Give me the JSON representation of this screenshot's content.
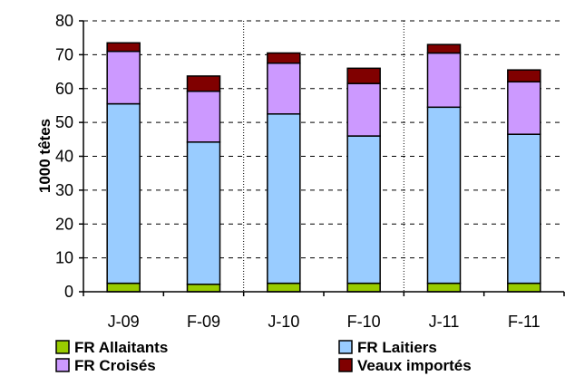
{
  "chart_data": {
    "type": "bar",
    "stacked": true,
    "categories": [
      "J-09",
      "F-09",
      "J-10",
      "F-10",
      "J-11",
      "F-11"
    ],
    "series": [
      {
        "name": "FR Allaitants",
        "color": "#99cc00",
        "values": [
          2.5,
          2.2,
          2.5,
          2.5,
          2.5,
          2.5
        ]
      },
      {
        "name": "FR Laitiers",
        "color": "#99ccff",
        "values": [
          53,
          42,
          50,
          43.5,
          52,
          44
        ]
      },
      {
        "name": "FR Croisés",
        "color": "#cc99ff",
        "values": [
          15.5,
          15,
          15,
          15.5,
          16,
          15.5
        ]
      },
      {
        "name": "Veaux importés",
        "color": "#800000",
        "values": [
          2.5,
          4.5,
          3,
          4.5,
          2.5,
          3.5
        ]
      }
    ],
    "ylabel": "1000 têtes",
    "ylim": [
      0,
      80
    ],
    "yticks": [
      0,
      10,
      20,
      30,
      40,
      50,
      60,
      70,
      80
    ],
    "grid": "horizontal-dashed",
    "group_separators_after": [
      "F-09",
      "F-10"
    ],
    "legend_position": "bottom"
  }
}
